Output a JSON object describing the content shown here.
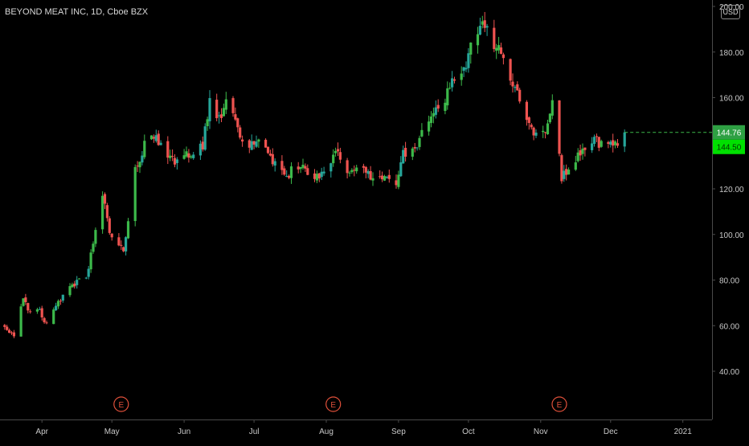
{
  "header": {
    "symbol_title": "BEYOND MEAT INC, 1D, Cboe BZX",
    "currency_label": "USD"
  },
  "chart_data": {
    "type": "candlestick",
    "title": "BEYOND MEAT INC, 1D, Cboe BZX",
    "currency": "USD",
    "ylim": [
      34,
      210
    ],
    "y_ticks": [
      40,
      60,
      80,
      100,
      120,
      140,
      160,
      180,
      200
    ],
    "y_tick_labels": [
      "40.00",
      "60.00",
      "80.00",
      "100.00",
      "120.00",
      "140.00",
      "160.00",
      "180.00",
      "200.00"
    ],
    "x_ticks": [
      "Apr",
      "May",
      "Jun",
      "Jul",
      "Aug",
      "Sep",
      "Oct",
      "Nov",
      "Dec",
      "2021"
    ],
    "price_label_current": "144.76",
    "price_label_secondary": "144.50",
    "last_price": 144.76,
    "earnings_markers": [
      {
        "label": "E",
        "date": "2020-05-05"
      },
      {
        "label": "E",
        "date": "2020-08-04"
      },
      {
        "label": "E",
        "date": "2020-11-09"
      }
    ],
    "colors": {
      "up": "#26a69a",
      "up_bright": "#3cb94a",
      "down": "#ef5350",
      "earnings": "#e0503a",
      "price_label_bg": "#2ea043",
      "price_label_secondary_bg": "#00e000",
      "background": "#000000",
      "axis_text": "#c8c8c8",
      "axis_line": "#4a4a4a"
    },
    "close_path": [
      [
        "2020-03-16",
        60
      ],
      [
        "2020-03-20",
        55
      ],
      [
        "2020-03-24",
        72
      ],
      [
        "2020-03-27",
        66
      ],
      [
        "2020-03-31",
        66
      ],
      [
        "2020-04-03",
        60
      ],
      [
        "2020-04-08",
        70
      ],
      [
        "2020-04-14",
        78
      ],
      [
        "2020-04-20",
        82
      ],
      [
        "2020-04-24",
        100
      ],
      [
        "2020-04-27",
        118
      ],
      [
        "2020-04-30",
        100
      ],
      [
        "2020-05-04",
        96
      ],
      [
        "2020-05-06",
        93
      ],
      [
        "2020-05-11",
        128
      ],
      [
        "2020-05-15",
        139
      ],
      [
        "2020-05-20",
        143
      ],
      [
        "2020-05-26",
        133
      ],
      [
        "2020-05-29",
        132
      ],
      [
        "2020-06-02",
        135
      ],
      [
        "2020-06-05",
        137
      ],
      [
        "2020-06-09",
        140
      ],
      [
        "2020-06-12",
        160
      ],
      [
        "2020-06-16",
        150
      ],
      [
        "2020-06-19",
        158
      ],
      [
        "2020-06-24",
        145
      ],
      [
        "2020-06-30",
        139
      ],
      [
        "2020-07-03",
        142
      ],
      [
        "2020-07-09",
        131
      ],
      [
        "2020-07-15",
        126
      ],
      [
        "2020-07-21",
        130
      ],
      [
        "2020-07-27",
        125
      ],
      [
        "2020-08-03",
        130
      ],
      [
        "2020-08-05",
        136
      ],
      [
        "2020-08-10",
        127
      ],
      [
        "2020-08-17",
        127
      ],
      [
        "2020-08-24",
        126
      ],
      [
        "2020-08-31",
        122
      ],
      [
        "2020-09-03",
        135
      ],
      [
        "2020-09-09",
        140
      ],
      [
        "2020-09-15",
        150
      ],
      [
        "2020-09-21",
        160
      ],
      [
        "2020-09-25",
        168
      ],
      [
        "2020-09-30",
        175
      ],
      [
        "2020-10-06",
        192
      ],
      [
        "2020-10-09",
        188
      ],
      [
        "2020-10-14",
        180
      ],
      [
        "2020-10-20",
        166
      ],
      [
        "2020-10-26",
        152
      ],
      [
        "2020-10-29",
        142
      ],
      [
        "2020-11-03",
        146
      ],
      [
        "2020-11-06",
        160
      ],
      [
        "2020-11-10",
        125
      ],
      [
        "2020-11-13",
        128
      ],
      [
        "2020-11-18",
        135
      ],
      [
        "2020-11-23",
        140
      ],
      [
        "2020-11-27",
        141
      ],
      [
        "2020-12-03",
        140
      ],
      [
        "2020-12-07",
        144.76
      ]
    ]
  }
}
